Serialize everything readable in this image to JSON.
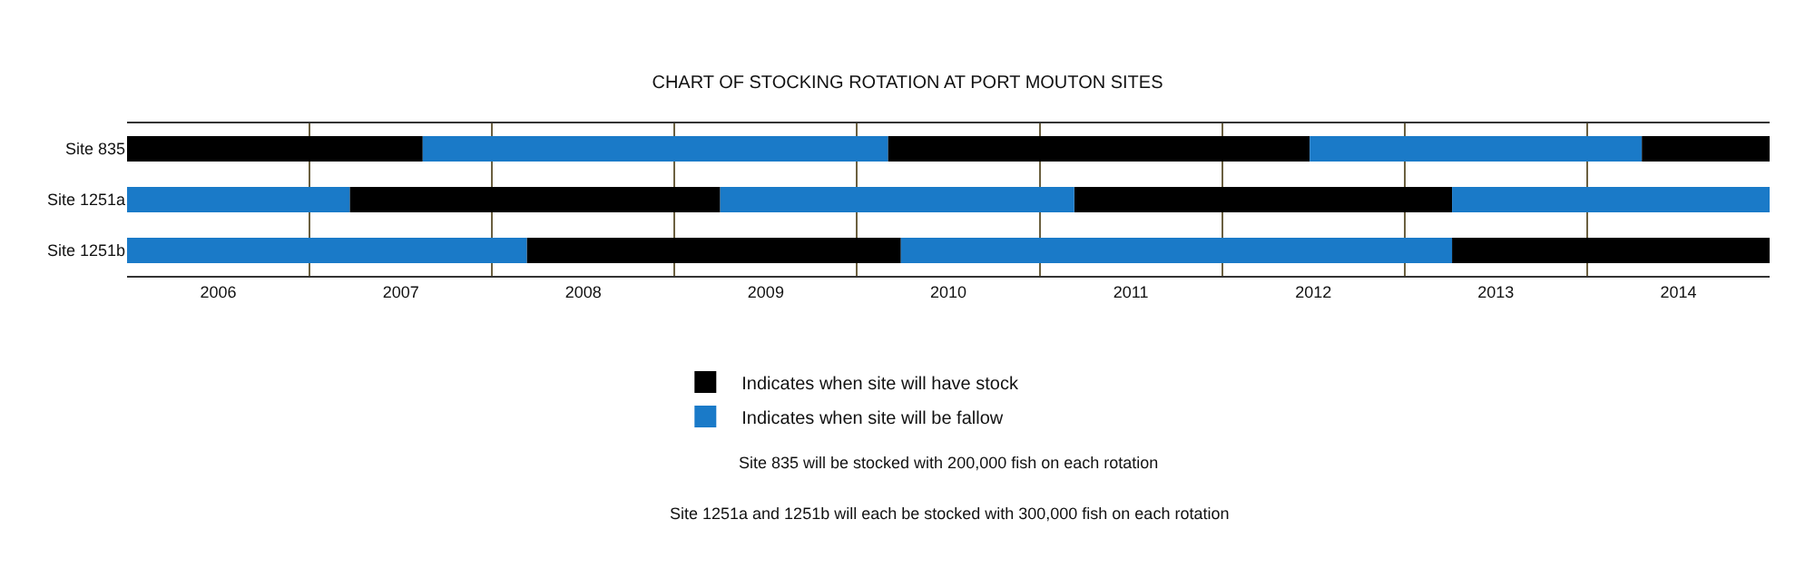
{
  "chart_data": {
    "type": "bar",
    "orientation": "horizontal",
    "title": "CHART OF STOCKING ROTATION AT PORT MOUTON SITES",
    "categories": [
      "Site 835",
      "Site 1251a",
      "Site 1251b"
    ],
    "series": [
      {
        "name": "Indicates when site will have stock",
        "color": "#000000",
        "base": [
          2005.5,
          2006.72,
          2007.69
        ],
        "values": [
          1.62,
          2.03,
          2.05
        ]
      },
      {
        "name": "Indicates when site will be fallow",
        "color": "#1a7ac8",
        "base": [
          2007.12,
          2005.5,
          2005.5
        ],
        "values": [
          2.55,
          1.22,
          2.19
        ]
      },
      {
        "color": "#000000",
        "base": [
          2009.67,
          2010.69,
          2012.76
        ],
        "values": [
          2.31,
          2.07,
          1.74
        ]
      },
      {
        "color": "#1a7ac8",
        "base": [
          2011.98,
          2008.75,
          2009.74
        ],
        "values": [
          1.82,
          1.94,
          3.02
        ]
      },
      {
        "color": "#000000",
        "base": [
          2013.8,
          null,
          null
        ],
        "values": [
          0.7,
          null,
          null
        ]
      },
      {
        "color": "#1a7ac8",
        "base": [
          null,
          2012.76,
          null
        ],
        "values": [
          null,
          1.74,
          null
        ]
      }
    ],
    "xlim": [
      2005.5,
      2014.5
    ],
    "xticks": [
      2006,
      {
        "value": 2006.5,
        "label": null
      },
      2007,
      {
        "value": 2007.5,
        "label": null
      },
      2008,
      {
        "value": 2008.5,
        "label": null
      },
      2009,
      {
        "value": 2009.5,
        "label": null
      },
      2010,
      {
        "value": 2010.5,
        "label": null
      },
      2011,
      {
        "value": 2011.5,
        "label": null
      },
      2012,
      {
        "value": 2012.5,
        "label": null
      },
      2013,
      {
        "value": 2013.5,
        "label": null
      },
      2014
    ],
    "grid": "x",
    "legend": "bottom",
    "annotations": [
      "Site 835 will be stocked with 200,000 fish on each rotation",
      "Site 1251a and 1251b will each be stocked with 300,000 fish on each rotation"
    ]
  }
}
